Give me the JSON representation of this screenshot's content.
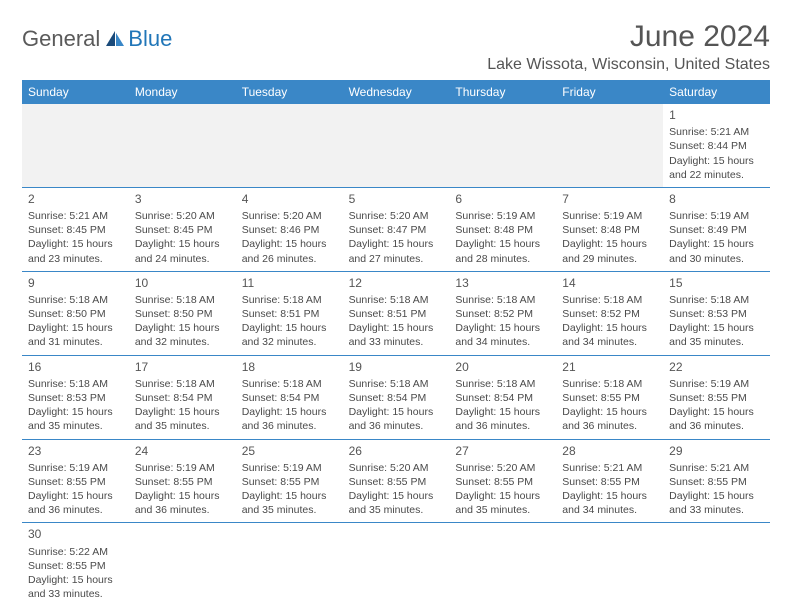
{
  "logo": {
    "general": "General",
    "blue": "Blue"
  },
  "title": "June 2024",
  "location": "Lake Wissota, Wisconsin, United States",
  "colors": {
    "header_bg": "#3a87c7",
    "header_text": "#ffffff",
    "blank_bg": "#f2f2f2",
    "border": "#3a87c7",
    "text": "#4a4a4a",
    "logo_blue": "#2176b8",
    "logo_gray": "#5a5a5a"
  },
  "weekdays": [
    "Sunday",
    "Monday",
    "Tuesday",
    "Wednesday",
    "Thursday",
    "Friday",
    "Saturday"
  ],
  "weeks": [
    [
      null,
      null,
      null,
      null,
      null,
      null,
      {
        "n": "1",
        "sunrise": "Sunrise: 5:21 AM",
        "sunset": "Sunset: 8:44 PM",
        "d1": "Daylight: 15 hours",
        "d2": "and 22 minutes."
      }
    ],
    [
      {
        "n": "2",
        "sunrise": "Sunrise: 5:21 AM",
        "sunset": "Sunset: 8:45 PM",
        "d1": "Daylight: 15 hours",
        "d2": "and 23 minutes."
      },
      {
        "n": "3",
        "sunrise": "Sunrise: 5:20 AM",
        "sunset": "Sunset: 8:45 PM",
        "d1": "Daylight: 15 hours",
        "d2": "and 24 minutes."
      },
      {
        "n": "4",
        "sunrise": "Sunrise: 5:20 AM",
        "sunset": "Sunset: 8:46 PM",
        "d1": "Daylight: 15 hours",
        "d2": "and 26 minutes."
      },
      {
        "n": "5",
        "sunrise": "Sunrise: 5:20 AM",
        "sunset": "Sunset: 8:47 PM",
        "d1": "Daylight: 15 hours",
        "d2": "and 27 minutes."
      },
      {
        "n": "6",
        "sunrise": "Sunrise: 5:19 AM",
        "sunset": "Sunset: 8:48 PM",
        "d1": "Daylight: 15 hours",
        "d2": "and 28 minutes."
      },
      {
        "n": "7",
        "sunrise": "Sunrise: 5:19 AM",
        "sunset": "Sunset: 8:48 PM",
        "d1": "Daylight: 15 hours",
        "d2": "and 29 minutes."
      },
      {
        "n": "8",
        "sunrise": "Sunrise: 5:19 AM",
        "sunset": "Sunset: 8:49 PM",
        "d1": "Daylight: 15 hours",
        "d2": "and 30 minutes."
      }
    ],
    [
      {
        "n": "9",
        "sunrise": "Sunrise: 5:18 AM",
        "sunset": "Sunset: 8:50 PM",
        "d1": "Daylight: 15 hours",
        "d2": "and 31 minutes."
      },
      {
        "n": "10",
        "sunrise": "Sunrise: 5:18 AM",
        "sunset": "Sunset: 8:50 PM",
        "d1": "Daylight: 15 hours",
        "d2": "and 32 minutes."
      },
      {
        "n": "11",
        "sunrise": "Sunrise: 5:18 AM",
        "sunset": "Sunset: 8:51 PM",
        "d1": "Daylight: 15 hours",
        "d2": "and 32 minutes."
      },
      {
        "n": "12",
        "sunrise": "Sunrise: 5:18 AM",
        "sunset": "Sunset: 8:51 PM",
        "d1": "Daylight: 15 hours",
        "d2": "and 33 minutes."
      },
      {
        "n": "13",
        "sunrise": "Sunrise: 5:18 AM",
        "sunset": "Sunset: 8:52 PM",
        "d1": "Daylight: 15 hours",
        "d2": "and 34 minutes."
      },
      {
        "n": "14",
        "sunrise": "Sunrise: 5:18 AM",
        "sunset": "Sunset: 8:52 PM",
        "d1": "Daylight: 15 hours",
        "d2": "and 34 minutes."
      },
      {
        "n": "15",
        "sunrise": "Sunrise: 5:18 AM",
        "sunset": "Sunset: 8:53 PM",
        "d1": "Daylight: 15 hours",
        "d2": "and 35 minutes."
      }
    ],
    [
      {
        "n": "16",
        "sunrise": "Sunrise: 5:18 AM",
        "sunset": "Sunset: 8:53 PM",
        "d1": "Daylight: 15 hours",
        "d2": "and 35 minutes."
      },
      {
        "n": "17",
        "sunrise": "Sunrise: 5:18 AM",
        "sunset": "Sunset: 8:54 PM",
        "d1": "Daylight: 15 hours",
        "d2": "and 35 minutes."
      },
      {
        "n": "18",
        "sunrise": "Sunrise: 5:18 AM",
        "sunset": "Sunset: 8:54 PM",
        "d1": "Daylight: 15 hours",
        "d2": "and 36 minutes."
      },
      {
        "n": "19",
        "sunrise": "Sunrise: 5:18 AM",
        "sunset": "Sunset: 8:54 PM",
        "d1": "Daylight: 15 hours",
        "d2": "and 36 minutes."
      },
      {
        "n": "20",
        "sunrise": "Sunrise: 5:18 AM",
        "sunset": "Sunset: 8:54 PM",
        "d1": "Daylight: 15 hours",
        "d2": "and 36 minutes."
      },
      {
        "n": "21",
        "sunrise": "Sunrise: 5:18 AM",
        "sunset": "Sunset: 8:55 PM",
        "d1": "Daylight: 15 hours",
        "d2": "and 36 minutes."
      },
      {
        "n": "22",
        "sunrise": "Sunrise: 5:19 AM",
        "sunset": "Sunset: 8:55 PM",
        "d1": "Daylight: 15 hours",
        "d2": "and 36 minutes."
      }
    ],
    [
      {
        "n": "23",
        "sunrise": "Sunrise: 5:19 AM",
        "sunset": "Sunset: 8:55 PM",
        "d1": "Daylight: 15 hours",
        "d2": "and 36 minutes."
      },
      {
        "n": "24",
        "sunrise": "Sunrise: 5:19 AM",
        "sunset": "Sunset: 8:55 PM",
        "d1": "Daylight: 15 hours",
        "d2": "and 36 minutes."
      },
      {
        "n": "25",
        "sunrise": "Sunrise: 5:19 AM",
        "sunset": "Sunset: 8:55 PM",
        "d1": "Daylight: 15 hours",
        "d2": "and 35 minutes."
      },
      {
        "n": "26",
        "sunrise": "Sunrise: 5:20 AM",
        "sunset": "Sunset: 8:55 PM",
        "d1": "Daylight: 15 hours",
        "d2": "and 35 minutes."
      },
      {
        "n": "27",
        "sunrise": "Sunrise: 5:20 AM",
        "sunset": "Sunset: 8:55 PM",
        "d1": "Daylight: 15 hours",
        "d2": "and 35 minutes."
      },
      {
        "n": "28",
        "sunrise": "Sunrise: 5:21 AM",
        "sunset": "Sunset: 8:55 PM",
        "d1": "Daylight: 15 hours",
        "d2": "and 34 minutes."
      },
      {
        "n": "29",
        "sunrise": "Sunrise: 5:21 AM",
        "sunset": "Sunset: 8:55 PM",
        "d1": "Daylight: 15 hours",
        "d2": "and 33 minutes."
      }
    ],
    [
      {
        "n": "30",
        "sunrise": "Sunrise: 5:22 AM",
        "sunset": "Sunset: 8:55 PM",
        "d1": "Daylight: 15 hours",
        "d2": "and 33 minutes."
      },
      null,
      null,
      null,
      null,
      null,
      null
    ]
  ]
}
